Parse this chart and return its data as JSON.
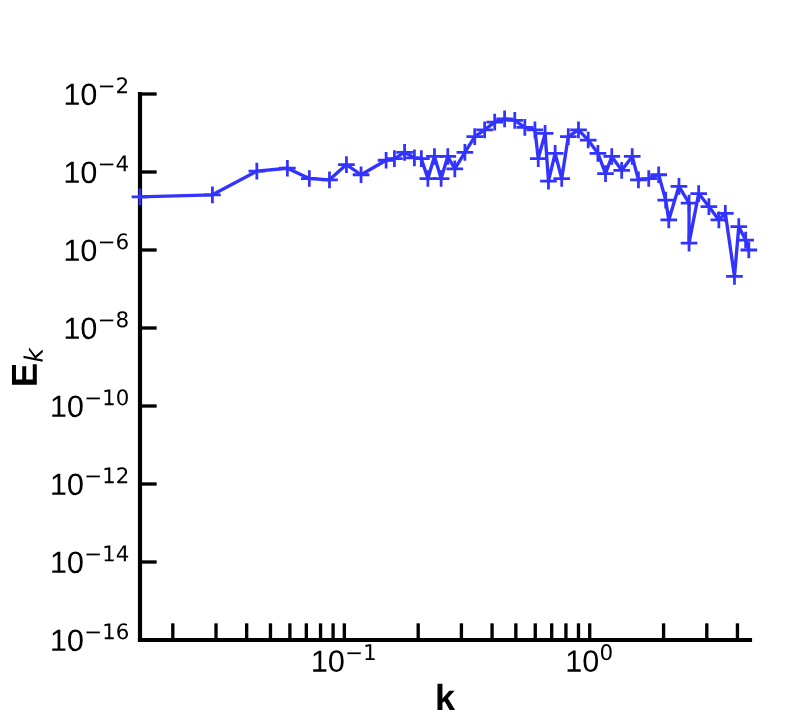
{
  "chart_data": {
    "type": "line",
    "xlabel": "k",
    "ylabel": "E$_{k}$",
    "log": "xy",
    "marker": "cross",
    "line_style": "solid",
    "grid": false,
    "xlim": [
      0.0147,
      4.5
    ],
    "ylim": [
      1e-16,
      0.01
    ],
    "xticks": [
      {
        "value": 0.02,
        "label": null
      },
      {
        "value": 0.03,
        "label": null
      },
      {
        "value": 0.04,
        "label": null
      },
      {
        "value": 0.05,
        "label": null
      },
      {
        "value": 0.06,
        "label": null
      },
      {
        "value": 0.07,
        "label": null
      },
      {
        "value": 0.08,
        "label": null
      },
      {
        "value": 0.09,
        "label": null
      },
      {
        "value": 0.1,
        "label": "10$^{−1}$"
      },
      {
        "value": 0.2,
        "label": null
      },
      {
        "value": 0.3,
        "label": null
      },
      {
        "value": 0.4,
        "label": null
      },
      {
        "value": 0.5,
        "label": null
      },
      {
        "value": 0.6,
        "label": null
      },
      {
        "value": 0.7,
        "label": null
      },
      {
        "value": 0.8,
        "label": null
      },
      {
        "value": 0.9,
        "label": null
      },
      {
        "value": 1,
        "label": "10$^{0}$"
      },
      {
        "value": 2,
        "label": null
      },
      {
        "value": 3,
        "label": null
      },
      {
        "value": 4,
        "label": null
      }
    ],
    "yticks": [
      {
        "value": 1e-16,
        "label": "10$^{−16}$"
      },
      {
        "value": 1e-14,
        "label": "10$^{−14}$"
      },
      {
        "value": 1e-12,
        "label": "10$^{−12}$"
      },
      {
        "value": 1e-10,
        "label": "10$^{−10}$"
      },
      {
        "value": 1e-08,
        "label": "10$^{−8}$"
      },
      {
        "value": 1e-06,
        "label": "10$^{−6}$"
      },
      {
        "value": 0.0001,
        "label": "10$^{−4}$"
      },
      {
        "value": 0.01,
        "label": "10$^{−2}$"
      }
    ],
    "series": [
      {
        "color": "#3333ff",
        "x": [
          0.0147,
          0.029,
          0.044,
          0.0586,
          0.072,
          0.087,
          0.102,
          0.117,
          0.148,
          0.16,
          0.176,
          0.193,
          0.206,
          0.219,
          0.233,
          0.248,
          0.264,
          0.282,
          0.31,
          0.34,
          0.373,
          0.41,
          0.45,
          0.495,
          0.544,
          0.598,
          0.617,
          0.658,
          0.679,
          0.723,
          0.769,
          0.818,
          0.9,
          0.986,
          1.08,
          1.16,
          1.23,
          1.35,
          1.49,
          1.58,
          1.74,
          1.91,
          2.04,
          2.1,
          2.31,
          2.54,
          2.54,
          2.78,
          3.06,
          3.36,
          3.57,
          3.89,
          4.05,
          4.32,
          4.45
        ],
        "values": [
          2.3e-05,
          2.6e-05,
          0.000105,
          0.000125,
          6.8e-05,
          6.3e-05,
          0.000155,
          8.5e-05,
          0.0002,
          0.00022,
          0.00032,
          0.00023,
          0.00022,
          6.8e-05,
          0.00025,
          6.8e-05,
          0.00025,
          0.00012,
          0.00032,
          0.00081,
          0.0012,
          0.0019,
          0.0023,
          0.0021,
          0.0014,
          0.0012,
          0.00022,
          0.00098,
          5.8e-05,
          0.0003,
          6.8e-05,
          0.00081,
          0.0012,
          0.00066,
          0.0003,
          9.1e-05,
          0.00025,
          0.00011,
          0.00025,
          6.3e-05,
          6.8e-05,
          8.5e-05,
          1.9e-05,
          5.9e-06,
          4.3e-05,
          1.6e-05,
          1.5e-06,
          2.8e-05,
          1.3e-05,
          5.9e-06,
          8.7e-06,
          2.1e-07,
          4e-06,
          1.8e-06,
          1e-06
        ]
      }
    ]
  }
}
